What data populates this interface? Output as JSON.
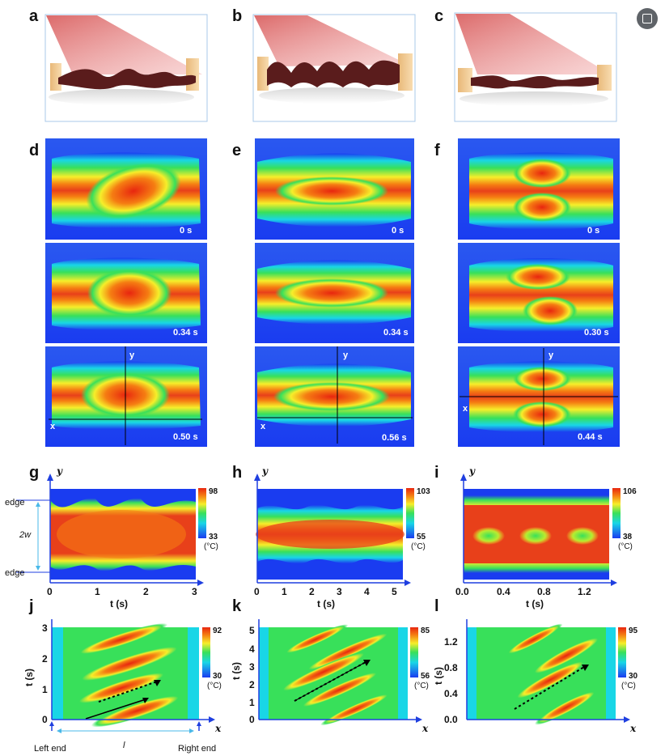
{
  "panel_letters": {
    "a": "a",
    "b": "b",
    "c": "c",
    "d": "d",
    "e": "e",
    "f": "f",
    "g": "g",
    "h": "h",
    "i": "i",
    "j": "j",
    "k": "k",
    "l": "l"
  },
  "frames": {
    "d": [
      "0 s",
      "0.34 s",
      "0.50 s"
    ],
    "e": [
      "0 s",
      "0.34 s",
      "0.56 s"
    ],
    "f": [
      "0 s",
      "0.30 s",
      "0.44 s"
    ]
  },
  "frame_axes": {
    "x": "x",
    "y": "y"
  },
  "g": {
    "yaxis": "y",
    "xlabel": "t (s)",
    "xticks": [
      "0",
      "1",
      "2",
      "3"
    ],
    "edge_top": "edge",
    "edge_bottom": "edge",
    "width_label": "2w",
    "cb_max": "98",
    "cb_min": "33",
    "unit": "(°C)"
  },
  "h": {
    "yaxis": "y",
    "xlabel": "t (s)",
    "xticks": [
      "0",
      "1",
      "2",
      "3",
      "4",
      "5"
    ],
    "cb_max": "103",
    "cb_min": "55",
    "unit": "(°C)"
  },
  "i": {
    "yaxis": "y",
    "xlabel": "t (s)",
    "xticks": [
      "0.0",
      "0.4",
      "0.8",
      "1.2"
    ],
    "cb_max": "106",
    "cb_min": "38",
    "unit": "(°C)"
  },
  "j": {
    "xaxis": "x",
    "ylabel": "t (s)",
    "yticks": [
      "0",
      "1",
      "2",
      "3"
    ],
    "cb_max": "92",
    "cb_min": "30",
    "unit": "(°C)",
    "left_end": "Left end",
    "right_end": "Right end",
    "length_label": "l"
  },
  "k": {
    "xaxis": "x",
    "ylabel": "t (s)",
    "yticks": [
      "0",
      "1",
      "2",
      "3",
      "4",
      "5"
    ],
    "cb_max": "85",
    "cb_min": "56",
    "unit": "(°C)"
  },
  "l": {
    "xaxis": "x",
    "ylabel": "t (s)",
    "yticks": [
      "0.0",
      "0.4",
      "0.8",
      "1.2"
    ],
    "cb_max": "95",
    "cb_min": "30",
    "unit": "(°C)"
  },
  "colors": {
    "jet_blue": "#1a3cf0",
    "jet_cyan": "#19d6e6",
    "jet_green": "#38e05a",
    "jet_yellow": "#f6ee2a",
    "jet_orange": "#f57d12",
    "jet_red": "#e8260f",
    "beam": "#e07070",
    "film": "#5a1c1c",
    "clamp": "#f0c890",
    "axis": "#1f3fe0"
  },
  "icons": {
    "top_right": "lens-icon"
  }
}
